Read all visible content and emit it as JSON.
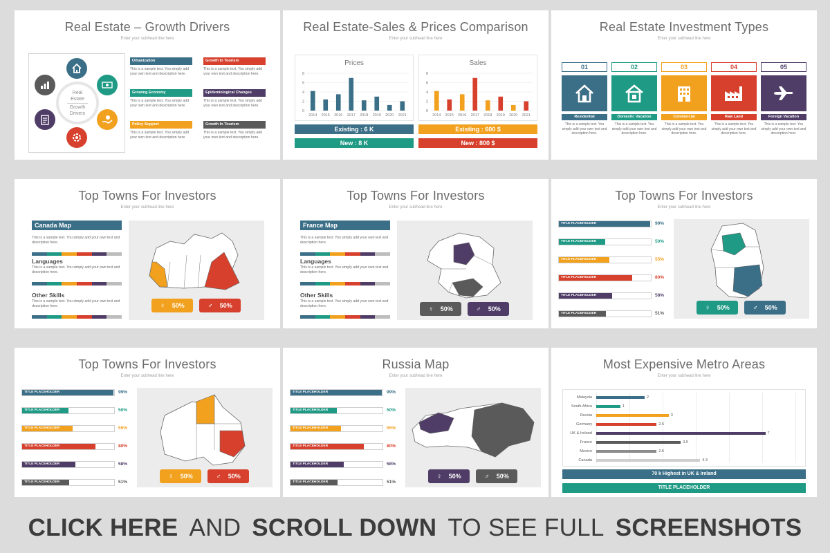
{
  "subhead": "Enter your subhead line here",
  "sample_text": "This is a sample text. You simply add your own text and description here.",
  "slides": {
    "growth": {
      "title": "Real Estate – Growth Drivers",
      "center": [
        "Real",
        "Estate",
        "Growth",
        "Drivers"
      ],
      "items": [
        {
          "label": "Urbanization",
          "color": "#3b6f87"
        },
        {
          "label": "Growth In Tourism",
          "color": "#d6402d"
        },
        {
          "label": "Growing Economy",
          "color": "#1f9a85"
        },
        {
          "label": "Epidemiological Changes",
          "color": "#4f3d67"
        },
        {
          "label": "Policy Support",
          "color": "#f2a11f"
        },
        {
          "label": "Growth In Tourism",
          "color": "#5a5a5a"
        }
      ],
      "icons": [
        "home-icon",
        "money-icon",
        "hand-coin-icon",
        "gear-coin-icon",
        "clipboard-icon",
        "chart-icon"
      ]
    },
    "sales": {
      "title": "Real Estate-Sales & Prices Comparison",
      "prices": {
        "title": "Prices",
        "existing": "Existing  :  6 K",
        "new": "New      :  8 K"
      },
      "sales": {
        "title": "Sales",
        "existing": "Existing  :  600 $",
        "new": "New       :  800 $"
      }
    },
    "investment": {
      "title": "Real Estate Investment Types",
      "types": [
        {
          "num": "01",
          "label": "Residential",
          "color": "#3b6f87",
          "icon": "house-icon"
        },
        {
          "num": "02",
          "label": "Domestic Vacation",
          "color": "#1f9a85",
          "icon": "home-circle-icon"
        },
        {
          "num": "03",
          "label": "Commercial",
          "color": "#f2a11f",
          "icon": "building-icon"
        },
        {
          "num": "04",
          "label": "Raw Land",
          "color": "#d6402d",
          "icon": "factory-icon"
        },
        {
          "num": "05",
          "label": "Foreign Vacation",
          "color": "#4f3d67",
          "icon": "airplane-icon"
        }
      ]
    },
    "towns_canada": {
      "title": "Top Towns For Investors",
      "map_label": "Canada Map",
      "h2a": "Languages",
      "h2b": "Other Skills",
      "pill1": "50%",
      "pill2": "50%"
    },
    "towns_france": {
      "title": "Top Towns For Investors",
      "map_label": "France Map",
      "h2a": "Languages",
      "h2b": "Other Skills",
      "pill1": "50%",
      "pill2": "50%"
    },
    "towns_germany": {
      "title": "Top Towns For Investors",
      "pill1": "50%",
      "pill2": "50%"
    },
    "towns_australia": {
      "title": "Top Towns For Investors",
      "pill1": "50%",
      "pill2": "50%"
    },
    "russia": {
      "title": "Russia Map",
      "pill1": "50%",
      "pill2": "50%"
    },
    "metro": {
      "title": "Most Expensive Metro Areas",
      "highlight": "70 k Highest in UK & Ireland",
      "placeholder": "TITLE PLACEHOLDER"
    }
  },
  "progress_items": [
    {
      "label": "TITLE PLACEHOLDER",
      "pct": "99%",
      "value": 0.99,
      "color": "#3b6f87"
    },
    {
      "label": "TITLE PLACEHOLDER",
      "pct": "50%",
      "value": 0.5,
      "color": "#1f9a85"
    },
    {
      "label": "TITLE PLACEHOLDER",
      "pct": "55%",
      "value": 0.55,
      "color": "#f2a11f"
    },
    {
      "label": "TITLE PLACEHOLDER",
      "pct": "80%",
      "value": 0.8,
      "color": "#d6402d"
    },
    {
      "label": "TITLE PLACEHOLDER",
      "pct": "58%",
      "value": 0.58,
      "color": "#4f3d67"
    },
    {
      "label": "TITLE PLACEHOLDER",
      "pct": "51%",
      "value": 0.51,
      "color": "#5a5a5a"
    }
  ],
  "chart_data": [
    {
      "type": "bar",
      "title": "Prices",
      "categories": [
        "2014",
        "2015",
        "2016",
        "2017",
        "2018",
        "2019",
        "2020",
        "2021"
      ],
      "values": [
        4.2,
        2.4,
        3.5,
        7,
        2.2,
        3,
        1.2,
        2
      ],
      "ylim": [
        0,
        8
      ],
      "yticks": [
        "0",
        "2",
        "4",
        "6",
        "8"
      ],
      "color": "#3b6f87"
    },
    {
      "type": "bar",
      "title": "Sales",
      "categories": [
        "2014",
        "2015",
        "2016",
        "2017",
        "2018",
        "2019",
        "2020",
        "2021"
      ],
      "values": [
        4.2,
        2.4,
        3.5,
        7,
        2.2,
        3,
        1.2,
        2
      ],
      "ylim": [
        0,
        8
      ],
      "yticks": [
        "0",
        "2",
        "4",
        "6",
        "8"
      ],
      "colors": [
        "#f2a11f",
        "#d6402d",
        "#f2a11f",
        "#d6402d",
        "#f2a11f",
        "#d6402d",
        "#f2a11f",
        "#d6402d"
      ]
    },
    {
      "type": "bar",
      "title": "",
      "orientation": "horizontal",
      "categories": [
        "Malaysia",
        "South Africa",
        "Russia",
        "Germany",
        "UK & Ireland",
        "France",
        "Mexico",
        "Canada"
      ],
      "values": [
        2,
        1,
        3,
        2.5,
        7,
        3.5,
        2.5,
        4.3
      ],
      "labels": [
        "2",
        "1",
        "3",
        "2.5",
        "7",
        "3.5",
        "2.5",
        "4.3"
      ],
      "colors": [
        "#3b6f87",
        "#1f9a85",
        "#f2a11f",
        "#d6402d",
        "#4f3d67",
        "#5a5a5a",
        "#8c8c8c",
        "#cfcfcf"
      ],
      "xlim": [
        0,
        7.5
      ]
    }
  ],
  "banner": {
    "b1": "CLICK HERE",
    "t1": "AND",
    "b2": "SCROLL DOWN",
    "t2": "TO SEE FULL",
    "b3": "SCREENSHOTS"
  }
}
